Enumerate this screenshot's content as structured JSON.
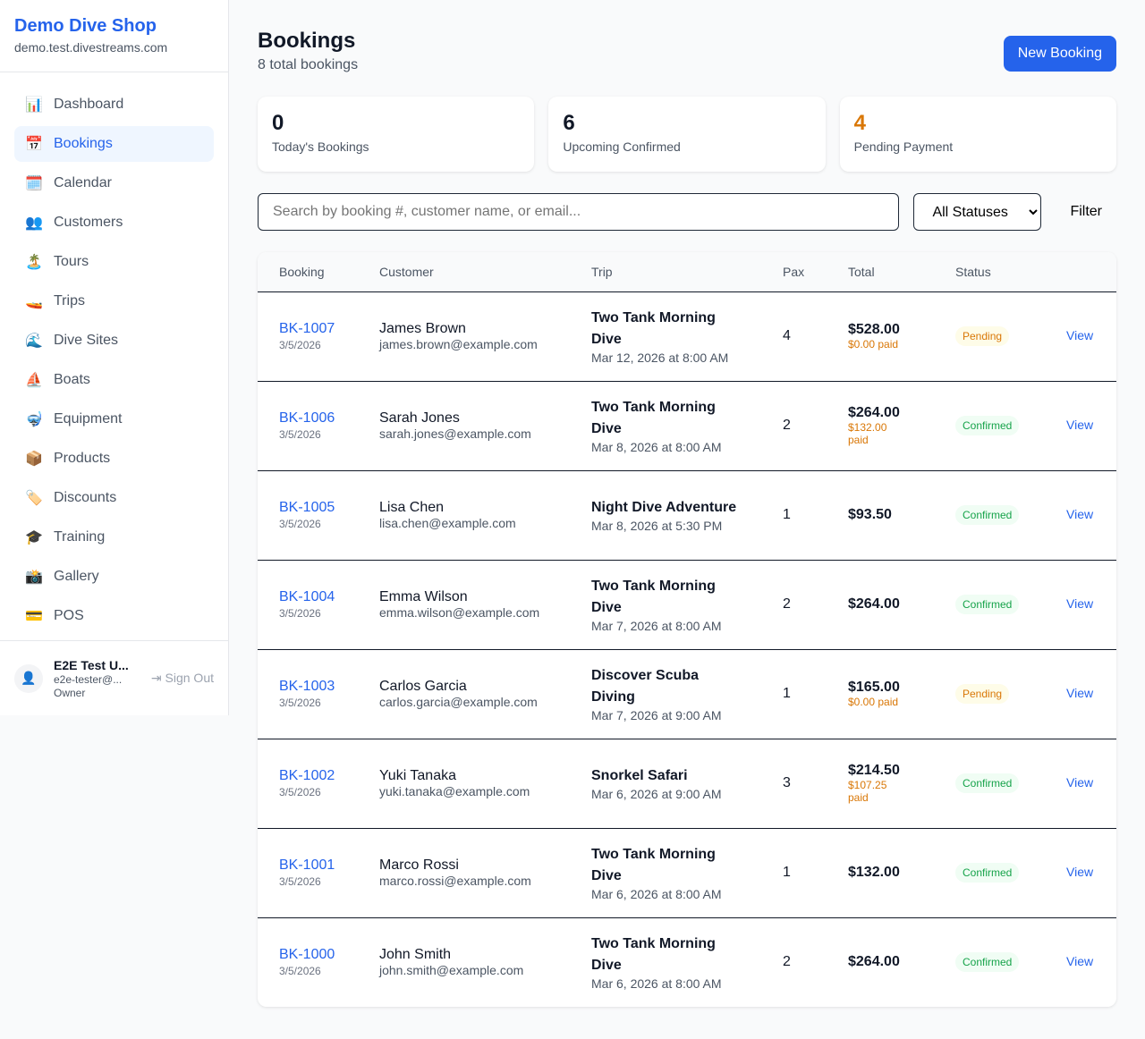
{
  "shop": {
    "name": "Demo Dive Shop",
    "domain": "demo.test.divestreams.com"
  },
  "nav": [
    {
      "icon": "📊",
      "label": "Dashboard",
      "name": "bar-chart-icon"
    },
    {
      "icon": "📅",
      "label": "Bookings",
      "name": "calendar-icon",
      "active": true
    },
    {
      "icon": "🗓️",
      "label": "Calendar",
      "name": "spiral-calendar-icon"
    },
    {
      "icon": "👥",
      "label": "Customers",
      "name": "users-icon"
    },
    {
      "icon": "🏝️",
      "label": "Tours",
      "name": "island-icon"
    },
    {
      "icon": "🚤",
      "label": "Trips",
      "name": "speedboat-icon"
    },
    {
      "icon": "🌊",
      "label": "Dive Sites",
      "name": "wave-icon"
    },
    {
      "icon": "⛵",
      "label": "Boats",
      "name": "sailboat-icon"
    },
    {
      "icon": "🤿",
      "label": "Equipment",
      "name": "diving-mask-icon"
    },
    {
      "icon": "📦",
      "label": "Products",
      "name": "package-icon"
    },
    {
      "icon": "🏷️",
      "label": "Discounts",
      "name": "tag-icon"
    },
    {
      "icon": "🎓",
      "label": "Training",
      "name": "graduation-cap-icon"
    },
    {
      "icon": "📸",
      "label": "Gallery",
      "name": "camera-icon"
    },
    {
      "icon": "💳",
      "label": "POS",
      "name": "credit-card-icon"
    }
  ],
  "user": {
    "name": "E2E Test U...",
    "email": "e2e-tester@...",
    "role": "Owner",
    "signout": "Sign Out"
  },
  "page": {
    "title": "Bookings",
    "subtitle": "8 total bookings",
    "new_button": "New Booking"
  },
  "stats": [
    {
      "value": "0",
      "label": "Today's Bookings",
      "color": "#111827"
    },
    {
      "value": "6",
      "label": "Upcoming Confirmed",
      "color": "#111827"
    },
    {
      "value": "4",
      "label": "Pending Payment",
      "color": "#d97706"
    }
  ],
  "filters": {
    "search_placeholder": "Search by booking #, customer name, or email...",
    "status_selected": "All Statuses",
    "filter_button": "Filter"
  },
  "table": {
    "columns": [
      "Booking",
      "Customer",
      "Trip",
      "Pax",
      "Total",
      "Status",
      ""
    ],
    "rows": [
      {
        "id": "BK-1007",
        "date": "3/5/2026",
        "customer": "James Brown",
        "email": "james.brown@example.com",
        "trip": "Two Tank Morning Dive",
        "trip_date": "Mar 12, 2026 at 8:00 AM",
        "pax": "4",
        "total": "$528.00",
        "paid": "$0.00 paid",
        "status": "Pending",
        "action": "View"
      },
      {
        "id": "BK-1006",
        "date": "3/5/2026",
        "customer": "Sarah Jones",
        "email": "sarah.jones@example.com",
        "trip": "Two Tank Morning Dive",
        "trip_date": "Mar 8, 2026 at 8:00 AM",
        "pax": "2",
        "total": "$264.00",
        "paid": "$132.00 paid",
        "status": "Confirmed",
        "action": "View"
      },
      {
        "id": "BK-1005",
        "date": "3/5/2026",
        "customer": "Lisa Chen",
        "email": "lisa.chen@example.com",
        "trip": "Night Dive Adventure",
        "trip_date": "Mar 8, 2026 at 5:30 PM",
        "pax": "1",
        "total": "$93.50",
        "paid": "",
        "status": "Confirmed",
        "action": "View"
      },
      {
        "id": "BK-1004",
        "date": "3/5/2026",
        "customer": "Emma Wilson",
        "email": "emma.wilson@example.com",
        "trip": "Two Tank Morning Dive",
        "trip_date": "Mar 7, 2026 at 8:00 AM",
        "pax": "2",
        "total": "$264.00",
        "paid": "",
        "status": "Confirmed",
        "action": "View"
      },
      {
        "id": "BK-1003",
        "date": "3/5/2026",
        "customer": "Carlos Garcia",
        "email": "carlos.garcia@example.com",
        "trip": "Discover Scuba Diving",
        "trip_date": "Mar 7, 2026 at 9:00 AM",
        "pax": "1",
        "total": "$165.00",
        "paid": "$0.00 paid",
        "status": "Pending",
        "action": "View"
      },
      {
        "id": "BK-1002",
        "date": "3/5/2026",
        "customer": "Yuki Tanaka",
        "email": "yuki.tanaka@example.com",
        "trip": "Snorkel Safari",
        "trip_date": "Mar 6, 2026 at 9:00 AM",
        "pax": "3",
        "total": "$214.50",
        "paid": "$107.25 paid",
        "status": "Confirmed",
        "action": "View"
      },
      {
        "id": "BK-1001",
        "date": "3/5/2026",
        "customer": "Marco Rossi",
        "email": "marco.rossi@example.com",
        "trip": "Two Tank Morning Dive",
        "trip_date": "Mar 6, 2026 at 8:00 AM",
        "pax": "1",
        "total": "$132.00",
        "paid": "",
        "status": "Confirmed",
        "action": "View"
      },
      {
        "id": "BK-1000",
        "date": "3/5/2026",
        "customer": "John Smith",
        "email": "john.smith@example.com",
        "trip": "Two Tank Morning Dive",
        "trip_date": "Mar 6, 2026 at 8:00 AM",
        "pax": "2",
        "total": "$264.00",
        "paid": "",
        "status": "Confirmed",
        "action": "View"
      }
    ]
  }
}
